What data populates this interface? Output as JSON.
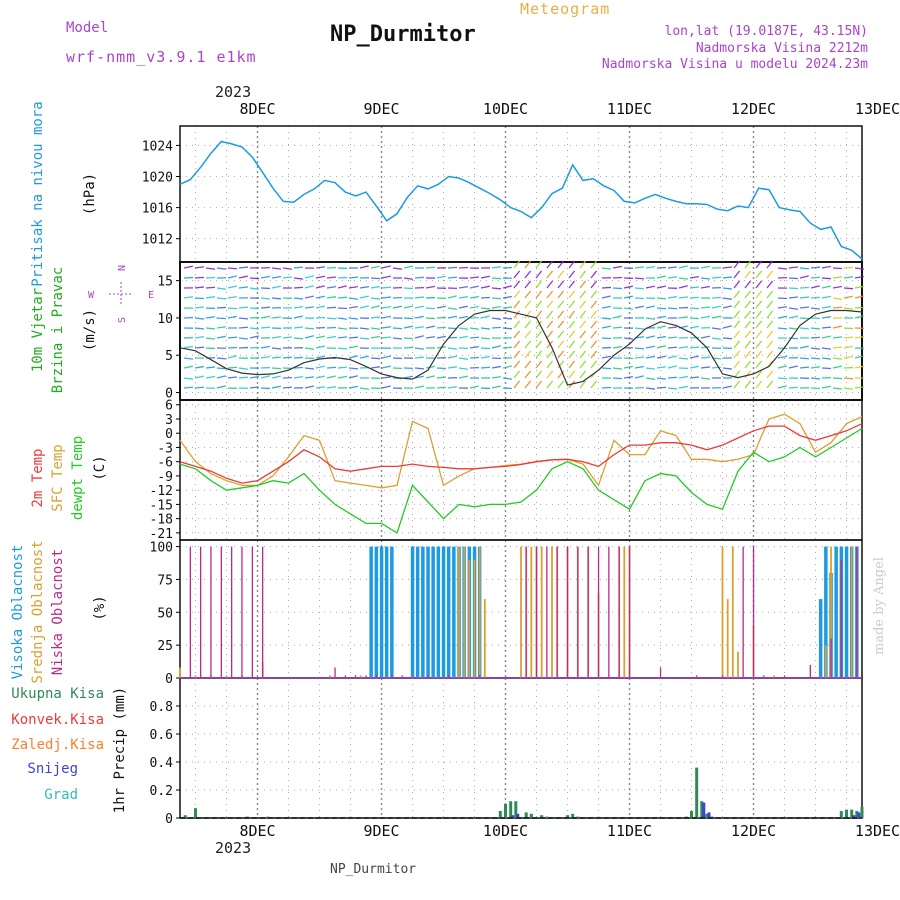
{
  "header": {
    "model_label": "Model",
    "model_name": "wrf-nmm_v3.9.1 e1km",
    "station_title": "NP_Durmitor",
    "chart_kind": "Meteogram",
    "location": "lon,lat (19.0187E, 43.15N)",
    "elevation": "Nadmorska Visina 2212m",
    "model_elevation": "Nadmorska Visina u modelu 2024.23m",
    "watermark": "made by Angel",
    "footer_station": "NP_Durmitor"
  },
  "colors": {
    "pressure": "#1e9be0",
    "temp": "#ee3a3a",
    "sfc_temp": "#daa030",
    "dewpt": "#22cc22",
    "high_cloud": "#1e9be0",
    "mid_cloud": "#daa030",
    "low_cloud": "#bb2a8a",
    "total_precip": "#2e8b57",
    "conv_precip": "#ee3a3a",
    "frozen_precip": "#ff7f27",
    "snow": "#4040dd",
    "graupel": "#33bbbb",
    "wind_label": "#22aa22",
    "wind_rose": "#aa44cc"
  },
  "time_axis": {
    "top_year": "2023",
    "bottom_year": "2023",
    "top_labels": [
      "8DEC",
      "9DEC",
      "10DEC",
      "11DEC",
      "12DEC",
      "13DEC"
    ],
    "bottom_labels": [
      "8DEC",
      "9DEC",
      "10DEC",
      "11DEC",
      "12DEC",
      "13DEC"
    ],
    "hours_range": [
      -15,
      117
    ],
    "day_hours": [
      0,
      24,
      48,
      72,
      96,
      120
    ]
  },
  "wind_rose": {
    "n": "N",
    "s": "S",
    "w": "W",
    "e": "E"
  },
  "chart_data": [
    {
      "panel": "pressure",
      "type": "line",
      "ylabel_main": "Pritisak na nivou mora",
      "ylabel_unit": "(hPa)",
      "ylim": [
        1009,
        1026.5
      ],
      "yticks": [
        1012,
        1016,
        1020,
        1024
      ],
      "grid": true,
      "series": [
        {
          "x": [
            -15,
            -13,
            -11,
            -9,
            -7,
            -5,
            -3,
            -1,
            1,
            3,
            5,
            7,
            9,
            11,
            13,
            15,
            17,
            19,
            21,
            23,
            25,
            27,
            29,
            31,
            33,
            35,
            37,
            39,
            41,
            43,
            45,
            47,
            49,
            51,
            53,
            55,
            57,
            59,
            61,
            63,
            65,
            67,
            69,
            71,
            73,
            75,
            77,
            79,
            81,
            83,
            85,
            87,
            89,
            91,
            93,
            95,
            97,
            99,
            101,
            103,
            105,
            107,
            109,
            111,
            113,
            115,
            117
          ],
          "y": [
            1019,
            1019.6,
            1021.2,
            1023,
            1024.5,
            1024.2,
            1023.8,
            1022.5,
            1020.5,
            1018.5,
            1016.8,
            1016.7,
            1017.7,
            1018.4,
            1019.5,
            1019.2,
            1018,
            1017.5,
            1018,
            1016.2,
            1014.3,
            1015.2,
            1017.3,
            1018.8,
            1018.4,
            1019,
            1020,
            1019.8,
            1019.2,
            1018.5,
            1017.8,
            1017,
            1016,
            1015.5,
            1014.7,
            1016,
            1017.8,
            1018.5,
            1021.5,
            1019.5,
            1019.7,
            1018.8,
            1018.2,
            1016.8,
            1016.6,
            1017.2,
            1017.7,
            1017.2,
            1016.8,
            1016.5,
            1016.5,
            1016.4,
            1015.8,
            1015.6,
            1016.2,
            1016,
            1018.5,
            1018.3,
            1016,
            1015.7,
            1015.5,
            1014,
            1013.2,
            1013.5,
            1011,
            1010.5,
            1009.4
          ]
        }
      ]
    },
    {
      "panel": "wind",
      "type": "line",
      "ylabel_main": "10m Vjetar",
      "ylabel_sub": "Brzina i Pravac",
      "ylabel_unit": "(m/s)",
      "ylim": [
        -1,
        17.5
      ],
      "yticks": [
        0,
        5,
        10,
        15
      ],
      "grid": true,
      "series": [
        {
          "x": [
            -15,
            -12,
            -9,
            -6,
            -3,
            0,
            3,
            6,
            9,
            12,
            15,
            18,
            21,
            24,
            27,
            30,
            33,
            36,
            39,
            42,
            45,
            48,
            51,
            54,
            57,
            60,
            63,
            66,
            69,
            72,
            75,
            78,
            81,
            84,
            87,
            90,
            93,
            96,
            99,
            102,
            105,
            108,
            111,
            114,
            117
          ],
          "y": [
            6,
            5.6,
            4.4,
            3.2,
            2.6,
            2.4,
            2.5,
            3,
            4,
            4.5,
            4.7,
            4.4,
            3.5,
            2.5,
            2,
            1.8,
            3,
            6.5,
            9,
            10.5,
            11,
            11,
            10.5,
            10,
            6,
            1,
            1.5,
            3,
            5,
            6.5,
            8.5,
            9.5,
            9,
            8,
            6,
            2.5,
            2,
            2.5,
            3.5,
            6,
            9,
            10.5,
            11,
            11,
            10.8
          ]
        }
      ]
    },
    {
      "panel": "temperature",
      "type": "line",
      "ylabel_main": "2m Temp",
      "ylabel_sub": "SFC Temp",
      "ylabel_sub2": "dewpt Temp",
      "ylabel_unit": "(C)",
      "ylim": [
        -22.5,
        7
      ],
      "yticks": [
        -21,
        -18,
        -15,
        -12,
        -9,
        -6,
        -3,
        0,
        3,
        6
      ],
      "grid": true,
      "series": [
        {
          "x": [
            -15,
            -12,
            -9,
            -6,
            -3,
            0,
            3,
            6,
            9,
            12,
            15,
            18,
            21,
            24,
            27,
            30,
            33,
            36,
            39,
            42,
            45,
            48,
            51,
            54,
            57,
            60,
            63,
            66,
            69,
            72,
            75,
            78,
            81,
            84,
            87,
            90,
            93,
            96,
            99,
            102,
            105,
            108,
            111,
            114,
            117
          ],
          "y": [
            -6,
            -7,
            -8,
            -9.5,
            -10.5,
            -10,
            -8,
            -6,
            -3.5,
            -5,
            -7.5,
            -8,
            -7.5,
            -7,
            -7,
            -6.5,
            -7,
            -7.2,
            -7.5,
            -7.5,
            -7.2,
            -7,
            -6.6,
            -6,
            -5.6,
            -5.5,
            -6,
            -7,
            -4.5,
            -2.5,
            -2.5,
            -2,
            -2,
            -2.5,
            -3.5,
            -2.5,
            -1,
            0.5,
            1.5,
            1.5,
            -0.5,
            -1.5,
            -0.5,
            0.5,
            2
          ]
        },
        {
          "x": [
            -15,
            -12,
            -9,
            -6,
            -3,
            0,
            3,
            6,
            9,
            12,
            15,
            18,
            21,
            24,
            27,
            30,
            33,
            36,
            39,
            42,
            45,
            48,
            51,
            54,
            57,
            60,
            63,
            66,
            69,
            72,
            75,
            78,
            81,
            84,
            87,
            90,
            93,
            96,
            99,
            102,
            105,
            108,
            111,
            114,
            117
          ],
          "y": [
            -1.5,
            -6,
            -8.5,
            -10,
            -11,
            -11,
            -9,
            -5,
            -0.5,
            -1.5,
            -10,
            -10.5,
            -11,
            -11.5,
            -11,
            2.5,
            1,
            -11,
            -9,
            -7.5,
            -7.2,
            -6.8,
            -6.5,
            -6,
            -5.6,
            -5.5,
            -6.5,
            -11,
            -1.5,
            -4.5,
            -4.5,
            0.5,
            -0.5,
            -5.5,
            -5.5,
            -6,
            -5.5,
            -4.5,
            3,
            4,
            2,
            -4,
            -2,
            2,
            3.5
          ]
        },
        {
          "x": [
            -15,
            -12,
            -9,
            -6,
            -3,
            0,
            3,
            6,
            9,
            12,
            15,
            18,
            21,
            24,
            27,
            30,
            33,
            36,
            39,
            42,
            45,
            48,
            51,
            54,
            57,
            60,
            63,
            66,
            69,
            72,
            75,
            78,
            81,
            84,
            87,
            90,
            93,
            96,
            99,
            102,
            105,
            108,
            111,
            114,
            117
          ],
          "y": [
            -6.5,
            -7.5,
            -10,
            -12,
            -11.5,
            -11,
            -10,
            -10.5,
            -8.5,
            -12,
            -15,
            -17,
            -19,
            -19,
            -21,
            -11,
            -14.5,
            -18,
            -15,
            -15.5,
            -15,
            -15,
            -14.5,
            -12,
            -7.5,
            -6,
            -7.5,
            -12,
            -14,
            -16,
            -10,
            -8.5,
            -9,
            -12.5,
            -15,
            -16,
            -8,
            -4,
            -6,
            -5,
            -3,
            -5,
            -3,
            -1,
            1
          ]
        }
      ]
    },
    {
      "panel": "clouds",
      "type": "bar",
      "ylabel_main": "Visoka Oblacnost",
      "ylabel_sub": "Srednja Oblacnost",
      "ylabel_sub2": "Niska Oblacnost",
      "ylabel_unit": "(%)",
      "ylim": [
        0,
        105
      ],
      "yticks": [
        0,
        25,
        50,
        75,
        100
      ],
      "grid": true,
      "series": [
        {
          "x": [
            22,
            23,
            24,
            25,
            26,
            30,
            31,
            32,
            33,
            34,
            35,
            36,
            37,
            38,
            39,
            40,
            41,
            42,
            43,
            109,
            110,
            111,
            112,
            113,
            114,
            115,
            116
          ],
          "y": [
            100,
            100,
            100,
            100,
            100,
            100,
            100,
            100,
            100,
            100,
            100,
            100,
            100,
            100,
            100,
            100,
            100,
            100,
            100,
            60,
            100,
            80,
            100,
            100,
            100,
            100,
            100
          ]
        },
        {
          "x": [
            -15,
            -12,
            -9,
            -6,
            -3,
            1,
            14,
            20,
            39,
            40,
            41,
            42,
            43,
            44,
            51,
            52,
            53,
            54,
            55,
            57,
            58,
            60,
            62,
            64,
            66,
            70,
            71,
            72,
            90,
            91,
            92,
            93,
            96,
            100,
            110,
            111,
            115
          ],
          "y": [
            8,
            2,
            2,
            2,
            2,
            12,
            2,
            2,
            100,
            100,
            90,
            90,
            100,
            60,
            100,
            100,
            100,
            100,
            100,
            100,
            100,
            100,
            100,
            100,
            65,
            100,
            100,
            100,
            100,
            60,
            100,
            20,
            40,
            2,
            25,
            100,
            100
          ]
        },
        {
          "x": [
            -13,
            -11,
            -9,
            -7,
            -5,
            -3,
            -1,
            1,
            15,
            17,
            19,
            21,
            23,
            26,
            28,
            33,
            37,
            43,
            52,
            54,
            56,
            58,
            60,
            62,
            64,
            66,
            68,
            70,
            72,
            78,
            85,
            90,
            94,
            96,
            98,
            102,
            107,
            111,
            113,
            116
          ],
          "y": [
            100,
            100,
            100,
            100,
            100,
            100,
            100,
            100,
            8,
            2,
            2,
            2,
            2,
            2,
            2,
            2,
            2,
            2,
            100,
            100,
            100,
            100,
            100,
            100,
            100,
            100,
            100,
            100,
            100,
            8,
            2,
            2,
            100,
            100,
            2,
            2,
            10,
            30,
            90,
            100
          ]
        }
      ]
    },
    {
      "panel": "precipitation",
      "type": "bar",
      "ylabel_unit": "1hr Precip (mm)",
      "ylim": [
        0,
        1.0
      ],
      "yticks": [
        0,
        0.2,
        0.4,
        0.6,
        0.8
      ],
      "grid": true,
      "legend_labels": [
        "Ukupna Kisa",
        "Konvek.Kisa",
        "Zaledj.Kisa",
        "Snijeg",
        "Grad"
      ],
      "series": [
        {
          "name": "Ukupna Kisa",
          "x": [
            -14,
            -12,
            -2,
            2,
            47,
            48,
            49,
            50,
            52,
            53,
            55,
            56,
            60,
            61,
            62,
            83,
            84,
            85,
            86,
            87,
            88,
            113,
            114,
            115,
            116,
            117
          ],
          "y": [
            0.02,
            0.07,
            0.01,
            0.01,
            0.05,
            0.1,
            0.12,
            0.12,
            0.04,
            0.03,
            0.02,
            0.01,
            0.02,
            0.03,
            0.01,
            0.01,
            0.05,
            0.36,
            0.12,
            0.03,
            0.01,
            0.05,
            0.06,
            0.06,
            0.05,
            0.08
          ]
        },
        {
          "name": "Snijeg",
          "x": [
            49,
            50,
            86,
            87,
            115,
            116
          ],
          "y": [
            0.02,
            0.03,
            0.11,
            0.04,
            0.02,
            0.04
          ]
        }
      ]
    }
  ]
}
